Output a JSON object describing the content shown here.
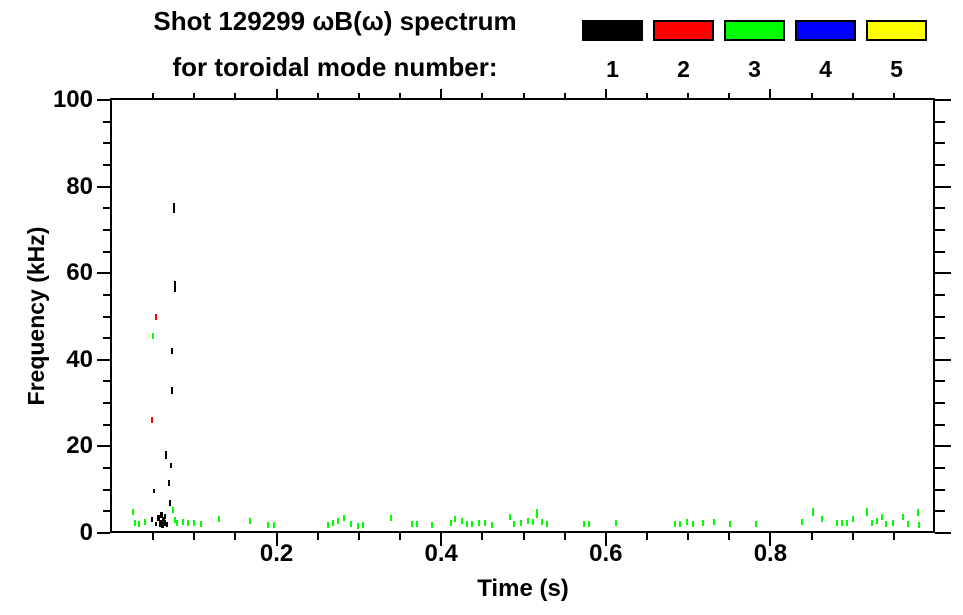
{
  "legend": {
    "items": [
      {
        "label": "1",
        "color": "#000000"
      },
      {
        "label": "2",
        "color": "#ff0000"
      },
      {
        "label": "3",
        "color": "#00ff00"
      },
      {
        "label": "4",
        "color": "#0000ff"
      },
      {
        "label": "5",
        "color": "#ffff00"
      }
    ]
  },
  "chart_data": {
    "type": "scatter",
    "title": "Shot 129299 ωB(ω) spectrum",
    "subtitle": "for toroidal mode number:",
    "xlabel": "Time (s)",
    "ylabel": "Frequency (kHz)",
    "xlim": [
      0,
      1.0
    ],
    "ylim": [
      0,
      100
    ],
    "x_major_ticks": [
      0.2,
      0.4,
      0.6,
      0.8
    ],
    "x_tick_labels": [
      "0.2",
      "0.4",
      "0.6",
      "0.8"
    ],
    "x_minor_step": 0.05,
    "y_major_ticks": [
      0,
      20,
      40,
      60,
      80,
      100
    ],
    "y_tick_labels": [
      "0",
      "20",
      "40",
      "60",
      "80",
      "100"
    ],
    "y_minor_step": 5,
    "grid": false,
    "legend_position": "top-right",
    "series": [
      {
        "name": "1",
        "color": "#000000",
        "points": [
          [
            0.075,
            75,
            10
          ],
          [
            0.076,
            57,
            11
          ],
          [
            0.073,
            42,
            6
          ],
          [
            0.073,
            33,
            7
          ],
          [
            0.066,
            18,
            8
          ],
          [
            0.072,
            15.5,
            5
          ],
          [
            0.069,
            11.5,
            6
          ],
          [
            0.051,
            9.8,
            4
          ],
          [
            0.07,
            7,
            6
          ],
          [
            0.048,
            3.2,
            5
          ],
          [
            0.053,
            2.0,
            4
          ],
          [
            0.057,
            3.5,
            6,
            3
          ],
          [
            0.059,
            2.2,
            7,
            3
          ],
          [
            0.06,
            4.2,
            6,
            3
          ],
          [
            0.061,
            1.8,
            6,
            3
          ],
          [
            0.062,
            3.0,
            7,
            3
          ],
          [
            0.064,
            2.4,
            6,
            3
          ],
          [
            0.065,
            3.8,
            5
          ],
          [
            0.067,
            2.0,
            5
          ]
        ]
      },
      {
        "name": "2",
        "color": "#ff0000",
        "points": [
          [
            0.054,
            50,
            6
          ],
          [
            0.049,
            26,
            6
          ]
        ]
      },
      {
        "name": "3",
        "color": "#00ff00",
        "points": [
          [
            0.026,
            4.8
          ],
          [
            0.028,
            2.2
          ],
          [
            0.033,
            2.0
          ],
          [
            0.04,
            2.6
          ],
          [
            0.05,
            45.5
          ],
          [
            0.074,
            5.2
          ],
          [
            0.076,
            3.0
          ],
          [
            0.079,
            2.2
          ],
          [
            0.086,
            2.6
          ],
          [
            0.092,
            2.4
          ],
          [
            0.1,
            2.2
          ],
          [
            0.108,
            2.0
          ],
          [
            0.13,
            3.2
          ],
          [
            0.168,
            2.8
          ],
          [
            0.19,
            1.8
          ],
          [
            0.197,
            1.8
          ],
          [
            0.263,
            1.8
          ],
          [
            0.269,
            2.4
          ],
          [
            0.275,
            2.8
          ],
          [
            0.282,
            3.4
          ],
          [
            0.29,
            2.0
          ],
          [
            0.299,
            1.6
          ],
          [
            0.305,
            1.8
          ],
          [
            0.339,
            3.4
          ],
          [
            0.365,
            2.0
          ],
          [
            0.371,
            2.0
          ],
          [
            0.389,
            1.8
          ],
          [
            0.412,
            2.3
          ],
          [
            0.417,
            3.3
          ],
          [
            0.425,
            2.8
          ],
          [
            0.431,
            2.0
          ],
          [
            0.437,
            2.0
          ],
          [
            0.446,
            2.4
          ],
          [
            0.453,
            2.2
          ],
          [
            0.462,
            1.8
          ],
          [
            0.483,
            3.8
          ],
          [
            0.489,
            2.0
          ],
          [
            0.497,
            2.4
          ],
          [
            0.505,
            2.8
          ],
          [
            0.511,
            2.6
          ],
          [
            0.517,
            4.6,
            9
          ],
          [
            0.523,
            2.6
          ],
          [
            0.529,
            2.0
          ],
          [
            0.574,
            2.0
          ],
          [
            0.58,
            2.0
          ],
          [
            0.613,
            2.2
          ],
          [
            0.684,
            2.0
          ],
          [
            0.69,
            2.0
          ],
          [
            0.699,
            2.6
          ],
          [
            0.706,
            2.0
          ],
          [
            0.718,
            2.2
          ],
          [
            0.732,
            2.6
          ],
          [
            0.751,
            2.0
          ],
          [
            0.783,
            2.0
          ],
          [
            0.839,
            2.6
          ],
          [
            0.852,
            4.8,
            8
          ],
          [
            0.863,
            3.2
          ],
          [
            0.881,
            2.2
          ],
          [
            0.887,
            2.2
          ],
          [
            0.893,
            2.4
          ],
          [
            0.9,
            3.2
          ],
          [
            0.917,
            4.8,
            8
          ],
          [
            0.923,
            2.4
          ],
          [
            0.929,
            2.8
          ],
          [
            0.935,
            3.6
          ],
          [
            0.941,
            2.0
          ],
          [
            0.949,
            2.4
          ],
          [
            0.961,
            3.6
          ],
          [
            0.967,
            2.0
          ],
          [
            0.979,
            4.8,
            7
          ],
          [
            0.981,
            1.8
          ]
        ]
      },
      {
        "name": "4",
        "color": "#0000ff",
        "points": []
      },
      {
        "name": "5",
        "color": "#ffff00",
        "points": []
      }
    ]
  }
}
